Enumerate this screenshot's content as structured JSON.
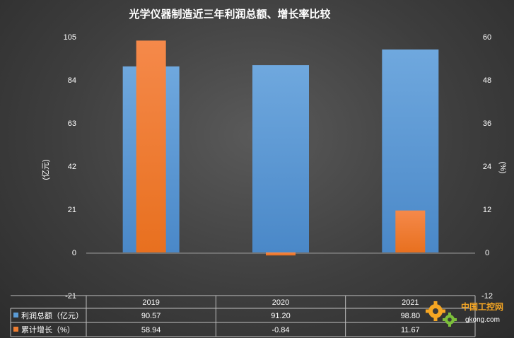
{
  "chart_data": {
    "type": "bar",
    "title": "光学仪器制造近三年利润总额、增长率比较",
    "categories": [
      "2019",
      "2020",
      "2021"
    ],
    "y_left": {
      "label": "(亿元)",
      "min": -21,
      "max": 105,
      "ticks": [
        "105",
        "84",
        "63",
        "42",
        "21",
        "0",
        "-21"
      ]
    },
    "y_right": {
      "label": "(%)",
      "min": -12,
      "max": 60,
      "ticks": [
        "60",
        "48",
        "36",
        "24",
        "12",
        "0",
        "-12"
      ]
    },
    "series": [
      {
        "name": "利润总额（亿元）",
        "axis": "left",
        "color": "#5b9bd5",
        "values": [
          90.57,
          91.2,
          98.8
        ],
        "labels": [
          "90.57",
          "91.20",
          "98.80"
        ]
      },
      {
        "name": "累计增长（%）",
        "axis": "right",
        "color": "#ed7d31",
        "values": [
          58.94,
          -0.84,
          11.67
        ],
        "labels": [
          "58.94",
          "-0.84",
          "11.67"
        ]
      }
    ],
    "grid": false,
    "legend": "data-table"
  },
  "watermark": {
    "text": "中国工控网",
    "url": "gkong.com",
    "color": "#f5a623",
    "icon": "gear-icon"
  }
}
